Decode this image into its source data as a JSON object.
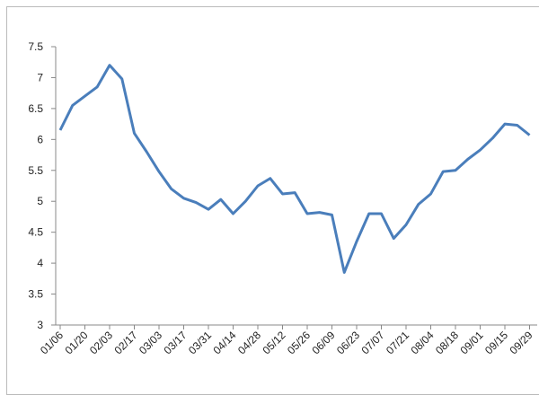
{
  "chart_data": {
    "type": "line",
    "categories": [
      "01/06",
      null,
      "01/20",
      null,
      "02/03",
      null,
      "02/17",
      null,
      "03/03",
      null,
      "03/17",
      null,
      "03/31",
      null,
      "04/14",
      null,
      "04/28",
      null,
      "05/12",
      null,
      "05/26",
      null,
      "06/09",
      null,
      "06/23",
      null,
      "07/07",
      null,
      "07/21",
      null,
      "08/04",
      null,
      "08/18",
      null,
      "09/01",
      null,
      "09/15",
      null,
      "09/29"
    ],
    "values": [
      6.15,
      6.55,
      6.7,
      6.85,
      7.2,
      6.98,
      6.1,
      5.8,
      5.48,
      5.2,
      5.05,
      4.98,
      4.87,
      5.03,
      4.8,
      5.0,
      5.25,
      5.37,
      5.12,
      5.14,
      4.8,
      4.82,
      4.78,
      3.85,
      4.35,
      4.8,
      4.8,
      4.4,
      4.62,
      4.95,
      5.12,
      5.48,
      5.5,
      5.68,
      5.83,
      6.02,
      6.25,
      6.23,
      6.07
    ],
    "color": "#4a7ebb",
    "ylim": [
      3,
      7.5
    ],
    "yticks": [
      3,
      3.5,
      4,
      4.5,
      5,
      5.5,
      6,
      6.5,
      7,
      7.5
    ],
    "grid": false
  }
}
